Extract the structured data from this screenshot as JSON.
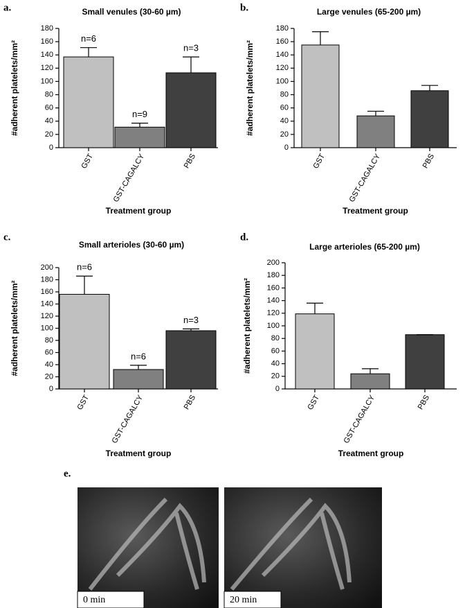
{
  "chart_data": [
    {
      "type": "bar",
      "panel": "a.",
      "title": "Small venules (30-60 µm)",
      "ylabel": "#adherent platelets/mm²",
      "xlabel": "Treatment group",
      "categories": [
        "GST",
        "GST-CAGALCY",
        "PBS"
      ],
      "values": [
        137,
        31,
        113
      ],
      "errors": [
        14,
        6,
        24
      ],
      "colors": [
        "#c0c0c0",
        "#808080",
        "#404040"
      ],
      "annotations": [
        "n=6",
        "n=9",
        "n=3"
      ],
      "ylim": [
        0,
        180
      ],
      "yticks": [
        0,
        20,
        40,
        60,
        80,
        100,
        120,
        140,
        160,
        180
      ]
    },
    {
      "type": "bar",
      "panel": "b.",
      "title": "Large venules (65-200 µm)",
      "ylabel": "#adherent platelets/mm²",
      "xlabel": "Treatment group",
      "categories": [
        "GST",
        "GST-CAGALCY",
        "PBS"
      ],
      "values": [
        155,
        48,
        86
      ],
      "errors": [
        20,
        7,
        8
      ],
      "colors": [
        "#c0c0c0",
        "#808080",
        "#404040"
      ],
      "ylim": [
        0,
        180
      ],
      "yticks": [
        0,
        20,
        40,
        60,
        80,
        100,
        120,
        140,
        160,
        180
      ]
    },
    {
      "type": "bar",
      "panel": "c.",
      "title": "Small arterioles (30-60 µm)",
      "ylabel": "#adherent platelets/mm²",
      "xlabel": "Treatment group",
      "categories": [
        "GST",
        "GST-CAGALCY",
        "PBS"
      ],
      "values": [
        156,
        32,
        96
      ],
      "errors": [
        30,
        7,
        3
      ],
      "colors": [
        "#c0c0c0",
        "#808080",
        "#404040"
      ],
      "annotations": [
        "n=6",
        "n=6",
        "n=3"
      ],
      "ylim": [
        0,
        200
      ],
      "yticks": [
        0,
        20,
        40,
        60,
        80,
        100,
        120,
        140,
        160,
        180,
        200
      ]
    },
    {
      "type": "bar",
      "panel": "d.",
      "title": "Large arterioles (65-200 µm)",
      "ylabel": "#adherent platelets/mm²",
      "xlabel": "Treatment group",
      "categories": [
        "GST",
        "GST-CAGALCY",
        "PBS"
      ],
      "values": [
        119,
        24,
        86
      ],
      "errors": [
        17,
        8,
        0
      ],
      "colors": [
        "#c0c0c0",
        "#808080",
        "#404040"
      ],
      "ylim": [
        0,
        200
      ],
      "yticks": [
        0,
        20,
        40,
        60,
        80,
        100,
        120,
        140,
        160,
        180,
        200
      ]
    }
  ],
  "panel_e": {
    "label": "e.",
    "images": [
      {
        "caption": "0 min"
      },
      {
        "caption": "20 min"
      }
    ]
  }
}
